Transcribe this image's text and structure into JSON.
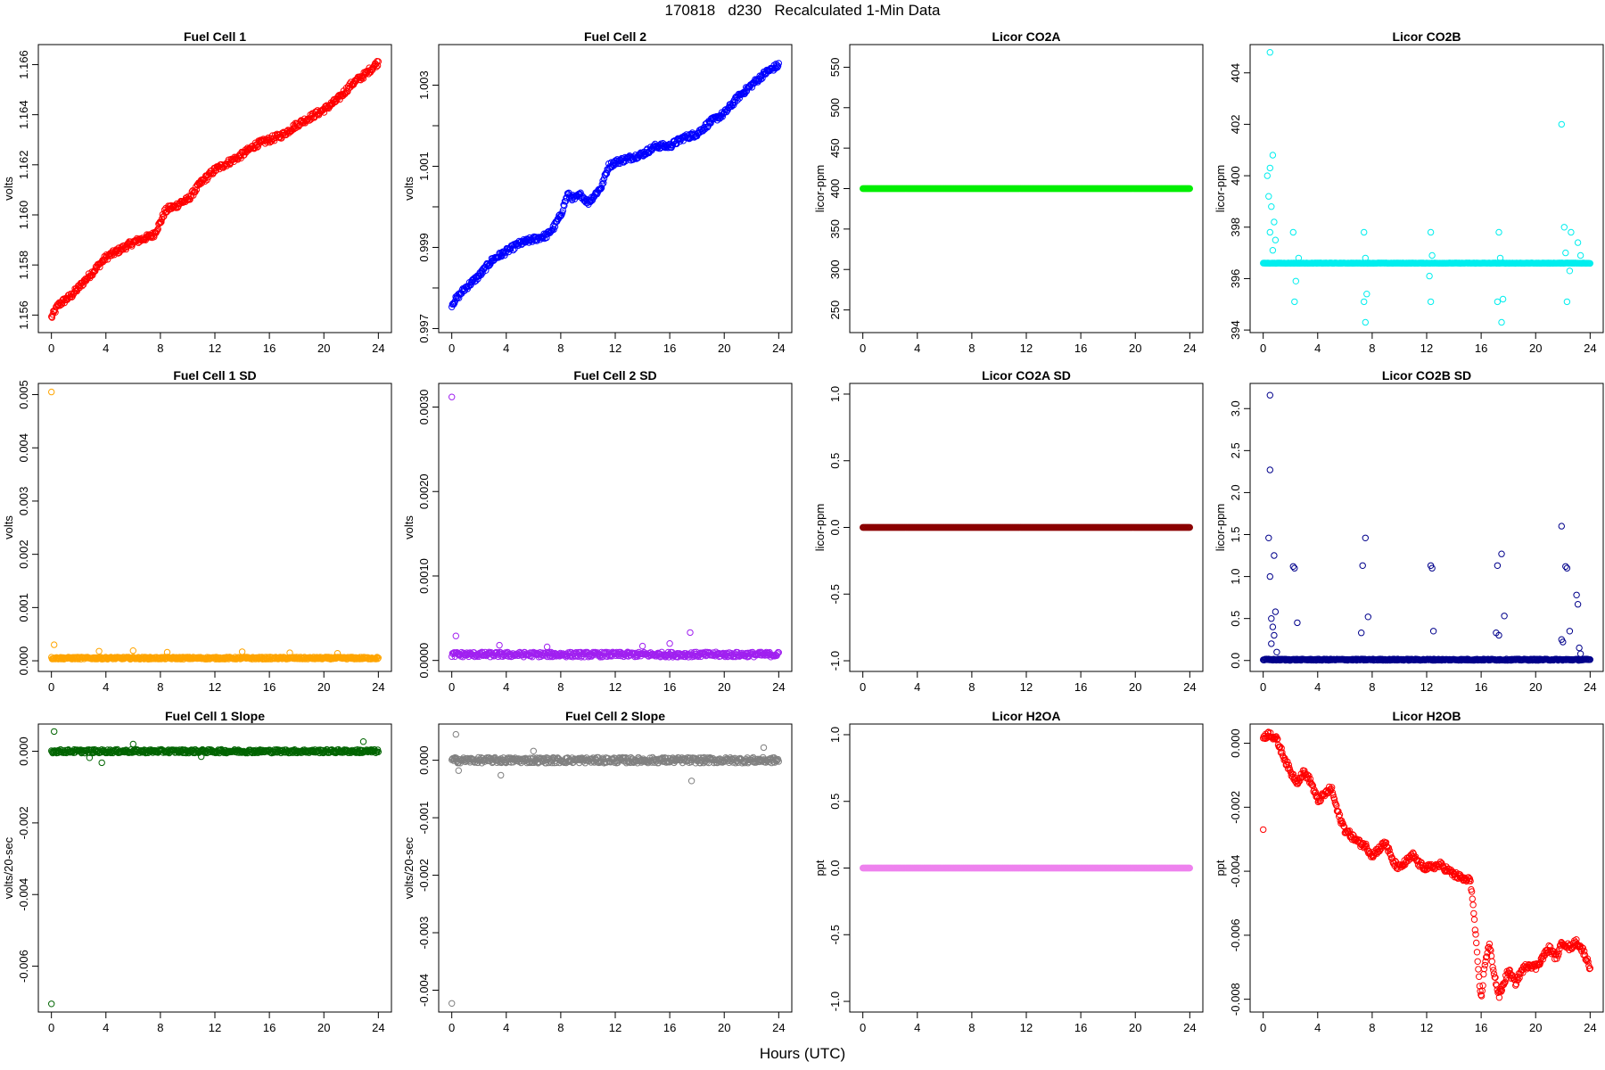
{
  "figure": {
    "title": "170818   d230   Recalculated 1-Min Data",
    "xlabel": "Hours (UTC)"
  },
  "chart_data": [
    {
      "type": "scatter",
      "title": "Fuel Cell 1",
      "ylabel": "volts",
      "color": "#ff0000",
      "xlim": [
        -0.96,
        24.96
      ],
      "ylim": [
        1.1553,
        1.1668
      ],
      "xticks": [
        0,
        4,
        8,
        12,
        16,
        20,
        24
      ],
      "yticks": [
        1.156,
        1.158,
        1.16,
        1.162,
        1.164,
        1.166
      ],
      "ytick_labels": [
        "1.156",
        "1.158",
        "1.160",
        "1.162",
        "1.164",
        "1.166"
      ],
      "x": [
        0,
        0.5,
        1,
        1.5,
        2,
        3,
        4,
        5,
        6,
        7,
        7.5,
        8,
        8.3,
        8.7,
        9,
        9.5,
        10,
        11,
        12,
        13,
        14,
        15,
        16,
        17,
        18,
        19,
        20,
        21,
        22,
        23,
        24
      ],
      "y": [
        1.1559,
        1.1564,
        1.1566,
        1.1568,
        1.1571,
        1.1577,
        1.1583,
        1.1586,
        1.1589,
        1.1591,
        1.1592,
        1.1597,
        1.1601,
        1.1603,
        1.1603,
        1.1605,
        1.1606,
        1.1613,
        1.1618,
        1.1621,
        1.1624,
        1.1628,
        1.163,
        1.1632,
        1.1636,
        1.1639,
        1.1642,
        1.1646,
        1.1652,
        1.1656,
        1.1661
      ],
      "noise": 0.00012
    },
    {
      "type": "scatter",
      "title": "Fuel Cell 2",
      "ylabel": "volts",
      "color": "#0000ff",
      "xlim": [
        -0.96,
        24.96
      ],
      "ylim": [
        0.9969,
        1.004
      ],
      "xticks": [
        0,
        4,
        8,
        12,
        16,
        20,
        24
      ],
      "yticks": [
        0.997,
        0.998,
        0.999,
        1.0,
        1.001,
        1.002,
        1.003
      ],
      "ytick_labels": [
        "0.997",
        "",
        "0.999",
        "",
        "1.001",
        "",
        "1.003"
      ],
      "x": [
        0,
        0.5,
        1,
        2,
        3,
        4,
        5,
        6,
        7,
        7.5,
        8,
        8.5,
        9,
        9.5,
        10,
        11,
        11.5,
        12,
        13,
        14,
        15,
        16,
        17,
        18,
        19,
        20,
        21,
        22,
        23,
        24
      ],
      "y": [
        0.9976,
        0.9978,
        0.998,
        0.9983,
        0.9987,
        0.9989,
        0.9991,
        0.9992,
        0.9993,
        0.9995,
        0.9998,
        1.0003,
        1.0002,
        1.0003,
        1.0001,
        1.0005,
        1.001,
        1.0011,
        1.0012,
        1.0013,
        1.0015,
        1.0015,
        1.0017,
        1.0018,
        1.0021,
        1.0023,
        1.0027,
        1.003,
        1.0033,
        1.0035
      ],
      "noise": 7e-05
    },
    {
      "type": "scatter",
      "title": "Licor CO2A",
      "ylabel": "licor-ppm",
      "color": "#00ee00",
      "xlim": [
        -0.96,
        24.96
      ],
      "ylim": [
        222,
        578
      ],
      "xticks": [
        0,
        4,
        8,
        12,
        16,
        20,
        24
      ],
      "yticks": [
        250,
        300,
        350,
        400,
        450,
        500,
        550
      ],
      "ytick_labels": [
        "250",
        "300",
        "350",
        "400",
        "450",
        "500",
        "550"
      ],
      "x": [
        0,
        24
      ],
      "y": [
        400,
        400
      ],
      "noise": 0
    },
    {
      "type": "scatter",
      "title": "Licor CO2B",
      "ylabel": "licor-ppm",
      "color": "#00eeee",
      "xlim": [
        -0.96,
        24.96
      ],
      "ylim": [
        393.9,
        405.1
      ],
      "xticks": [
        0,
        4,
        8,
        12,
        16,
        20,
        24
      ],
      "yticks": [
        394,
        396,
        398,
        400,
        402,
        404
      ],
      "ytick_labels": [
        "394",
        "396",
        "398",
        "400",
        "402",
        "404"
      ],
      "x": [
        0,
        24
      ],
      "y": [
        396.6,
        396.6
      ],
      "noise": 0.01,
      "outliers": [
        [
          0.5,
          404.8
        ],
        [
          0.3,
          400
        ],
        [
          0.4,
          399.2
        ],
        [
          0.5,
          400.3
        ],
        [
          0.6,
          398.8
        ],
        [
          0.7,
          400.8
        ],
        [
          0.8,
          398.2
        ],
        [
          0.9,
          397.5
        ],
        [
          0.5,
          397.8
        ],
        [
          0.7,
          397.1
        ],
        [
          2.2,
          397.8
        ],
        [
          2.3,
          395.1
        ],
        [
          2.4,
          395.9
        ],
        [
          2.6,
          396.8
        ],
        [
          7.4,
          397.8
        ],
        [
          7.4,
          395.1
        ],
        [
          7.5,
          394.3
        ],
        [
          7.6,
          395.4
        ],
        [
          7.5,
          396.8
        ],
        [
          12.3,
          397.8
        ],
        [
          12.3,
          395.1
        ],
        [
          12.2,
          396.1
        ],
        [
          12.4,
          396.9
        ],
        [
          17.3,
          397.8
        ],
        [
          17.2,
          395.1
        ],
        [
          17.5,
          394.3
        ],
        [
          17.6,
          395.2
        ],
        [
          17.4,
          396.8
        ],
        [
          21.9,
          402
        ],
        [
          22.1,
          398
        ],
        [
          22.2,
          397
        ],
        [
          22.3,
          395.1
        ],
        [
          22.5,
          396.3
        ],
        [
          22.6,
          397.8
        ],
        [
          23.1,
          397.4
        ],
        [
          23.3,
          396.9
        ]
      ]
    },
    {
      "type": "scatter",
      "title": "Fuel Cell 1 SD",
      "ylabel": "volts",
      "color": "#ffa500",
      "xlim": [
        -0.96,
        24.96
      ],
      "ylim": [
        -0.0002,
        0.00521
      ],
      "xticks": [
        0,
        4,
        8,
        12,
        16,
        20,
        24
      ],
      "yticks": [
        0,
        0.001,
        0.002,
        0.003,
        0.004,
        0.005
      ],
      "ytick_labels": [
        "0.000",
        "0.001",
        "0.002",
        "0.003",
        "0.004",
        "0.005"
      ],
      "x": [
        0,
        24
      ],
      "y": [
        5e-05,
        5e-05
      ],
      "noise": 2e-05,
      "outliers": [
        [
          0.0,
          0.00505
        ],
        [
          0.2,
          0.0003
        ],
        [
          3.5,
          0.00018
        ],
        [
          6,
          0.00019
        ],
        [
          8.5,
          0.00016
        ],
        [
          14,
          0.00017
        ],
        [
          17.5,
          0.00015
        ],
        [
          21,
          0.00014
        ]
      ]
    },
    {
      "type": "scatter",
      "title": "Fuel Cell 2 SD",
      "ylabel": "volts",
      "color": "#a020f0",
      "xlim": [
        -0.96,
        24.96
      ],
      "ylim": [
        -0.00013,
        0.00328
      ],
      "xticks": [
        0,
        4,
        8,
        12,
        16,
        20,
        24
      ],
      "yticks": [
        0,
        0.001,
        0.002,
        0.003
      ],
      "ytick_labels": [
        "0.0000",
        "0.0010",
        "0.0020",
        "0.0030"
      ],
      "x": [
        0,
        24
      ],
      "y": [
        7e-05,
        7e-05
      ],
      "noise": 3e-05,
      "outliers": [
        [
          0.0,
          0.00312
        ],
        [
          0.3,
          0.00029
        ],
        [
          3.5,
          0.00018
        ],
        [
          7,
          0.00016
        ],
        [
          14,
          0.00017
        ],
        [
          17.5,
          0.00033
        ],
        [
          16,
          0.0002
        ]
      ]
    },
    {
      "type": "scatter",
      "title": "Licor CO2A SD",
      "ylabel": "licor-ppm",
      "color": "#8b0000",
      "xlim": [
        -0.96,
        24.96
      ],
      "ylim": [
        -1.08,
        1.08
      ],
      "xticks": [
        0,
        4,
        8,
        12,
        16,
        20,
        24
      ],
      "yticks": [
        -1.0,
        -0.5,
        0.0,
        0.5,
        1.0
      ],
      "ytick_labels": [
        "-1.0",
        "-0.5",
        "0.0",
        "0.5",
        "1.0"
      ],
      "x": [
        0,
        24
      ],
      "y": [
        0,
        0
      ],
      "noise": 0
    },
    {
      "type": "scatter",
      "title": "Licor CO2B SD",
      "ylabel": "licor-ppm",
      "color": "#00008b",
      "xlim": [
        -0.96,
        24.96
      ],
      "ylim": [
        -0.13,
        3.3
      ],
      "xticks": [
        0,
        4,
        8,
        12,
        16,
        20,
        24
      ],
      "yticks": [
        0,
        0.5,
        1.0,
        1.5,
        2.0,
        2.5,
        3.0
      ],
      "ytick_labels": [
        "0.0",
        "0.5",
        "1.0",
        "1.5",
        "2.0",
        "2.5",
        "3.0"
      ],
      "x": [
        0,
        24
      ],
      "y": [
        0.01,
        0.01
      ],
      "noise": 0.008,
      "outliers": [
        [
          0.5,
          3.16
        ],
        [
          0.5,
          2.27
        ],
        [
          0.4,
          1.46
        ],
        [
          0.5,
          1.0
        ],
        [
          0.8,
          1.25
        ],
        [
          0.6,
          0.5
        ],
        [
          0.7,
          0.4
        ],
        [
          0.9,
          0.58
        ],
        [
          0.8,
          0.3
        ],
        [
          0.6,
          0.2
        ],
        [
          1.0,
          0.1
        ],
        [
          2.2,
          1.12
        ],
        [
          2.3,
          1.1
        ],
        [
          2.5,
          0.45
        ],
        [
          7.3,
          1.13
        ],
        [
          7.5,
          1.46
        ],
        [
          7.7,
          0.52
        ],
        [
          7.2,
          0.33
        ],
        [
          12.3,
          1.13
        ],
        [
          12.4,
          1.1
        ],
        [
          12.5,
          0.35
        ],
        [
          17.2,
          1.13
        ],
        [
          17.5,
          1.27
        ],
        [
          17.7,
          0.53
        ],
        [
          17.1,
          0.33
        ],
        [
          17.3,
          0.3
        ],
        [
          21.9,
          1.6
        ],
        [
          22.2,
          1.12
        ],
        [
          22.3,
          1.1
        ],
        [
          22.5,
          0.35
        ],
        [
          21.9,
          0.25
        ],
        [
          22,
          0.22
        ],
        [
          23,
          0.78
        ],
        [
          23.1,
          0.67
        ],
        [
          23.2,
          0.15
        ],
        [
          23.3,
          0.08
        ]
      ]
    },
    {
      "type": "scatter",
      "title": "Fuel Cell 1 Slope",
      "ylabel": "volts/20-sec",
      "color": "#006400",
      "xlim": [
        -0.96,
        24.96
      ],
      "ylim": [
        -0.00728,
        0.00076
      ],
      "xticks": [
        0,
        4,
        8,
        12,
        16,
        20,
        24
      ],
      "yticks": [
        -0.006,
        -0.004,
        -0.002,
        0
      ],
      "ytick_labels": [
        "-0.006",
        "-0.004",
        "-0.002",
        "0.000"
      ],
      "x": [
        0,
        24
      ],
      "y": [
        0,
        0
      ],
      "noise": 5e-05,
      "outliers": [
        [
          0.0,
          -0.00705
        ],
        [
          0.2,
          0.00055
        ],
        [
          3.7,
          -0.00032
        ],
        [
          2.8,
          -0.00018
        ],
        [
          22.9,
          0.00027
        ],
        [
          6,
          0.0002
        ],
        [
          11,
          -0.00015
        ]
      ]
    },
    {
      "type": "scatter",
      "title": "Fuel Cell 2 Slope",
      "ylabel": "volts/20-sec",
      "color": "#808080",
      "xlim": [
        -0.96,
        24.96
      ],
      "ylim": [
        -0.00438,
        0.00063
      ],
      "xticks": [
        0,
        4,
        8,
        12,
        16,
        20,
        24
      ],
      "yticks": [
        -0.004,
        -0.003,
        -0.002,
        -0.001,
        0
      ],
      "ytick_labels": [
        "-0.004",
        "-0.003",
        "-0.002",
        "-0.001",
        "0.000"
      ],
      "x": [
        0,
        24
      ],
      "y": [
        0,
        0
      ],
      "noise": 5e-05,
      "outliers": [
        [
          0.0,
          -0.00423
        ],
        [
          0.3,
          0.00045
        ],
        [
          0.5,
          -0.00018
        ],
        [
          3.6,
          -0.00026
        ],
        [
          17.6,
          -0.00036
        ],
        [
          22.9,
          0.00022
        ],
        [
          6,
          0.00016
        ]
      ]
    },
    {
      "type": "scatter",
      "title": "Licor H2OA",
      "ylabel": "ppt",
      "color": "#ee82ee",
      "xlim": [
        -0.96,
        24.96
      ],
      "ylim": [
        -1.08,
        1.08
      ],
      "xticks": [
        0,
        4,
        8,
        12,
        16,
        20,
        24
      ],
      "yticks": [
        -1.0,
        -0.5,
        0.0,
        0.5,
        1.0
      ],
      "ytick_labels": [
        "-1.0",
        "-0.5",
        "0.0",
        "0.5",
        "1.0"
      ],
      "x": [
        0,
        24
      ],
      "y": [
        0,
        0
      ],
      "noise": 0
    },
    {
      "type": "scatter",
      "title": "Licor H2OB",
      "ylabel": "ppt",
      "color": "#ff0000",
      "xlim": [
        -0.96,
        24.96
      ],
      "ylim": [
        -0.0084,
        0.0006
      ],
      "xticks": [
        0,
        4,
        8,
        12,
        16,
        20,
        24
      ],
      "yticks": [
        -0.008,
        -0.006,
        -0.004,
        -0.002,
        0
      ],
      "ytick_labels": [
        "-0.008",
        "-0.006",
        "-0.004",
        "-0.002",
        "0.000"
      ],
      "x": [
        0,
        0.5,
        1,
        1.5,
        2,
        2.5,
        3,
        3.5,
        4,
        4.5,
        5,
        5.5,
        6,
        6.5,
        7,
        7.5,
        8,
        8.5,
        9,
        9.5,
        10,
        11,
        11.5,
        12,
        13,
        14,
        15,
        15.2,
        15.5,
        15.8,
        16,
        16.3,
        16.6,
        17,
        17.3,
        17.5,
        18,
        18.5,
        19,
        19.5,
        20,
        20.5,
        21,
        21.5,
        22,
        22.5,
        23,
        23.5,
        24
      ],
      "y": [
        0.0002,
        0.0003,
        0.0001,
        -0.0004,
        -0.0009,
        -0.0012,
        -0.0009,
        -0.0012,
        -0.0018,
        -0.0016,
        -0.0014,
        -0.0022,
        -0.0027,
        -0.0029,
        -0.0031,
        -0.0032,
        -0.0035,
        -0.0033,
        -0.0031,
        -0.0037,
        -0.0039,
        -0.0035,
        -0.0038,
        -0.0039,
        -0.0038,
        -0.0041,
        -0.0043,
        -0.0042,
        -0.0055,
        -0.0072,
        -0.008,
        -0.0068,
        -0.0063,
        -0.0073,
        -0.0079,
        -0.0077,
        -0.0071,
        -0.0075,
        -0.0071,
        -0.0069,
        -0.007,
        -0.0067,
        -0.0064,
        -0.0067,
        -0.0062,
        -0.0064,
        -0.0062,
        -0.0065,
        -0.007
      ],
      "noise": 0.0001,
      "outliers": [
        [
          0.0,
          -0.0027
        ]
      ]
    }
  ]
}
